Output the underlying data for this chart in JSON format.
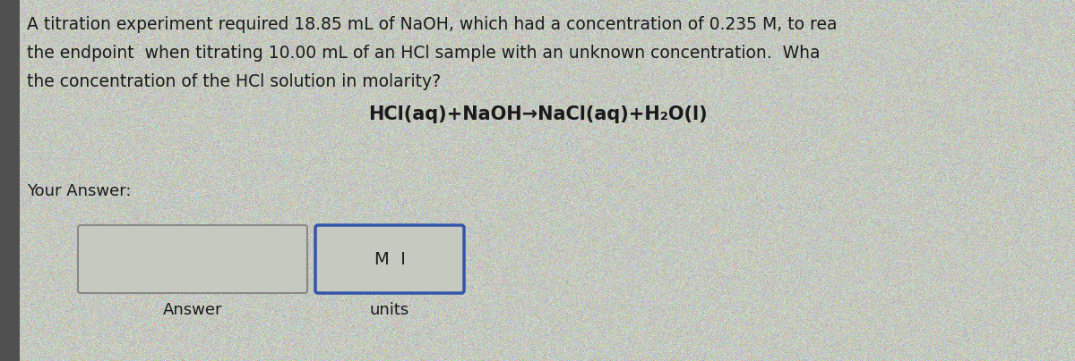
{
  "bg_color": "#c5c9c0",
  "left_strip_color": "#5a5a5a",
  "text_color": "#1a1a1a",
  "title_lines": [
    "A titration experiment required 18.85 mL of NaOH, which had a concentration of 0.235 M, to rea",
    "the endpoint  when titrating 10.00 mL of an HCl sample with an unknown concentration.  Wha",
    "the concentration of the HCl solution in molarity?"
  ],
  "equation": "HCl(aq)+NaOH→NaCl(aq)+H₂O(l)",
  "your_answer_label": "Your Answer:",
  "answer_label": "Answer",
  "units_label": "units",
  "units_box_text": "M  I",
  "title_fontsize": 13.5,
  "eq_fontsize": 15,
  "label_fontsize": 13,
  "box1_color": "#888888",
  "box2_color": "#3355aa"
}
